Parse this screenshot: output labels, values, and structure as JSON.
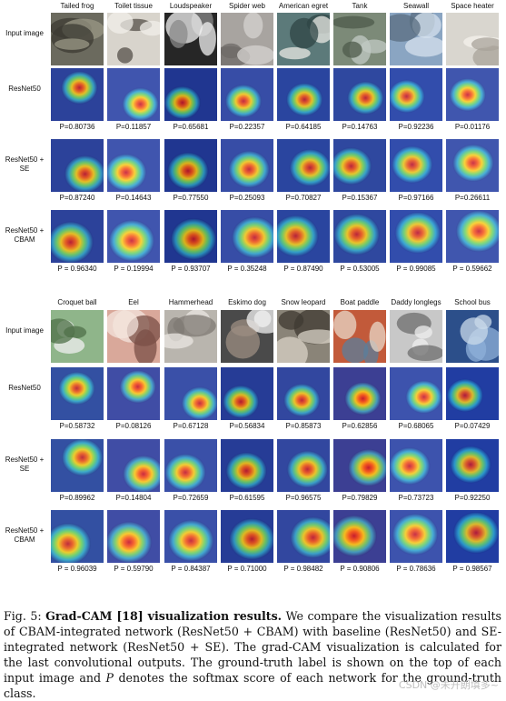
{
  "panels": [
    {
      "columns": [
        "Tailed frog",
        "Toilet tissue",
        "Loudspeaker",
        "Spider web",
        "American egret",
        "Tank",
        "Seawall",
        "Space heater"
      ],
      "rows": [
        {
          "label": "Input image",
          "kind": "input",
          "scores": []
        },
        {
          "label": "ResNet50",
          "kind": "cam",
          "scores": [
            "P=0.80736",
            "P=0.11857",
            "P=0.65681",
            "P=0.22357",
            "P=0.64185",
            "P=0.14763",
            "P=0.92236",
            "P=0.01176"
          ]
        },
        {
          "label": "ResNet50 + SE",
          "kind": "cam",
          "scores": [
            "P=0.87240",
            "P=0.14643",
            "P=0.77550",
            "P=0.25093",
            "P=0.70827",
            "P=0.15367",
            "P=0.97166",
            "P=0.26611"
          ]
        },
        {
          "label": "ResNet50 + CBAM",
          "kind": "cam",
          "scores": [
            "P = 0.96340",
            "P = 0.19994",
            "P = 0.93707",
            "P = 0.35248",
            "P = 0.87490",
            "P = 0.53005",
            "P = 0.99085",
            "P = 0.59662"
          ]
        }
      ]
    },
    {
      "columns": [
        "Croquet ball",
        "Eel",
        "Hammerhead",
        "Eskimo dog",
        "Snow leopard",
        "Boat paddle",
        "Daddy longlegs",
        "School bus"
      ],
      "rows": [
        {
          "label": "Input image",
          "kind": "input",
          "scores": []
        },
        {
          "label": "ResNet50",
          "kind": "cam",
          "scores": [
            "P=0.58732",
            "P=0.08126",
            "P=0.67128",
            "P=0.56834",
            "P=0.85873",
            "P=0.62856",
            "P=0.68065",
            "P=0.07429"
          ]
        },
        {
          "label": "ResNet50 + SE",
          "kind": "cam",
          "scores": [
            "P=0.89962",
            "P=0.14804",
            "P=0.72659",
            "P=0.61595",
            "P=0.96575",
            "P=0.79829",
            "P=0.73723",
            "P=0.92250"
          ]
        },
        {
          "label": "ResNet50 + CBAM",
          "kind": "cam",
          "scores": [
            "P = 0.96039",
            "P = 0.59790",
            "P = 0.84387",
            "P = 0.71000",
            "P = 0.98482",
            "P = 0.90806",
            "P = 0.78636",
            "P = 0.98567"
          ]
        }
      ]
    }
  ],
  "caption": {
    "prefix": "Fig. 5: ",
    "title": "Grad-CAM [18] visualization results.",
    "body_1": " We compare the visualization results of CBAM-integrated network (ResNet50 + CBAM) with baseline (ResNet50) and SE-integrated network (ResNet50 + SE). The grad-CAM visualization is calculated for the last convolutional outputs. The ground-truth label is shown on the top of each input image and ",
    "symbol": "P",
    "body_2": " denotes the softmax score of each network for the ground-truth class."
  },
  "watermark": "CSDN @未开朗填多~"
}
